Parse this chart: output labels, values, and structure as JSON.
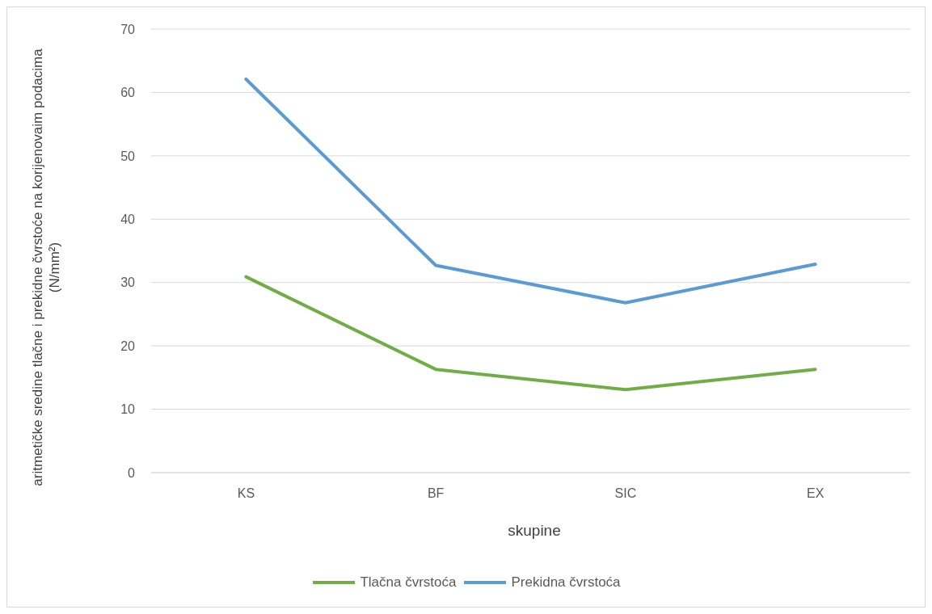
{
  "chart_data": {
    "type": "line",
    "xlabel": "skupine",
    "ylabel": "aritmetičke sredine tlačne i prekidne čvrstoće na korijenovaim podacima (N/mm²)",
    "categories": [
      "KS",
      "BF",
      "SIC",
      "EX"
    ],
    "series": [
      {
        "name": "Tlačna čvrstoća",
        "color": "#70ad47",
        "values": [
          30.9,
          16.3,
          13.1,
          16.3
        ]
      },
      {
        "name": "Prekidna čvrstoća",
        "color": "#5b9bd5",
        "values": [
          62.1,
          32.7,
          26.8,
          32.9
        ]
      }
    ],
    "ylim": [
      0,
      70
    ],
    "yticks": [
      0,
      10,
      20,
      30,
      40,
      50,
      60,
      70
    ],
    "grid": "y",
    "legend": "bottom",
    "marker": "none",
    "line_style": "solid"
  }
}
